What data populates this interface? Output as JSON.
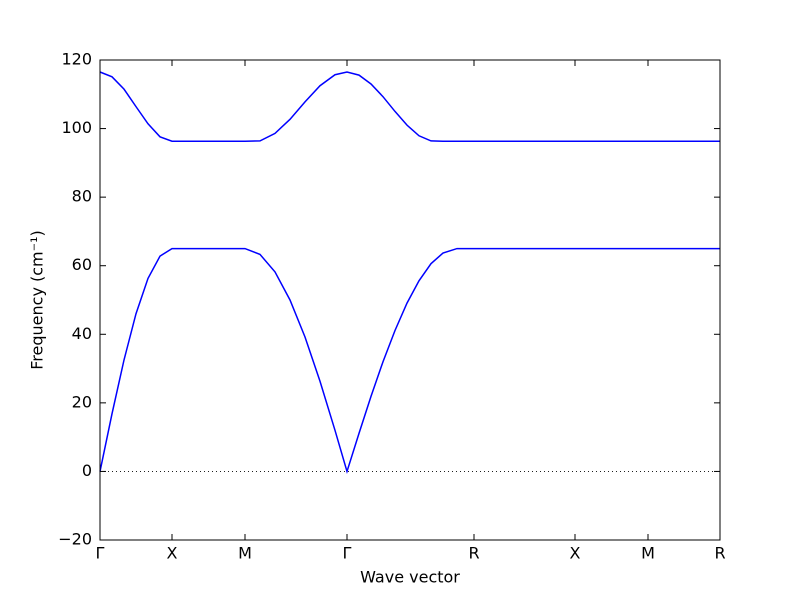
{
  "chart_data": {
    "type": "line",
    "x_label": "Wave vector",
    "y_label": "Frequency (cm⁻¹)",
    "x": [
      0,
      12,
      24,
      36,
      48,
      60,
      72,
      96,
      120,
      145,
      160,
      175,
      190,
      205,
      220,
      235,
      247,
      259,
      271,
      283,
      295,
      307,
      319,
      331,
      343,
      357,
      374,
      475,
      548,
      620
    ],
    "series": [
      {
        "color": "#0000ff",
        "values": [
          0,
          16.8,
          32.5,
          46.0,
          56.3,
          62.8,
          65,
          65,
          65,
          65,
          63.3,
          58.2,
          50.0,
          39.2,
          26.3,
          12.0,
          0,
          11.1,
          21.9,
          32.0,
          41.1,
          49.1,
          55.6,
          60.6,
          63.7,
          65,
          65,
          65,
          65,
          65
        ]
      },
      {
        "color": "#0000ff",
        "values": [
          116.5,
          115.1,
          111.5,
          106.4,
          101.4,
          97.6,
          96.3,
          96.3,
          96.3,
          96.3,
          96.4,
          98.6,
          102.7,
          107.8,
          112.5,
          115.7,
          116.5,
          115.6,
          113.0,
          109.3,
          105.0,
          101.0,
          97.9,
          96.4,
          96.3,
          96.3,
          96.3,
          96.3,
          96.3,
          96.3
        ]
      }
    ],
    "xlim": [
      0,
      620
    ],
    "xticks": [
      {
        "value": 0,
        "label": "Γ"
      },
      {
        "value": 72,
        "label": "X"
      },
      {
        "value": 145,
        "label": "M"
      },
      {
        "value": 247,
        "label": "Γ"
      },
      {
        "value": 374,
        "label": "R"
      },
      {
        "value": 475,
        "label": "X"
      },
      {
        "value": 548,
        "label": "M"
      },
      {
        "value": 620,
        "label": "R"
      }
    ],
    "ylim": [
      -20,
      120
    ],
    "yticks": [
      {
        "value": -20,
        "label": "−20"
      },
      0,
      20,
      40,
      60,
      80,
      100,
      120
    ],
    "reference_line": 0
  }
}
